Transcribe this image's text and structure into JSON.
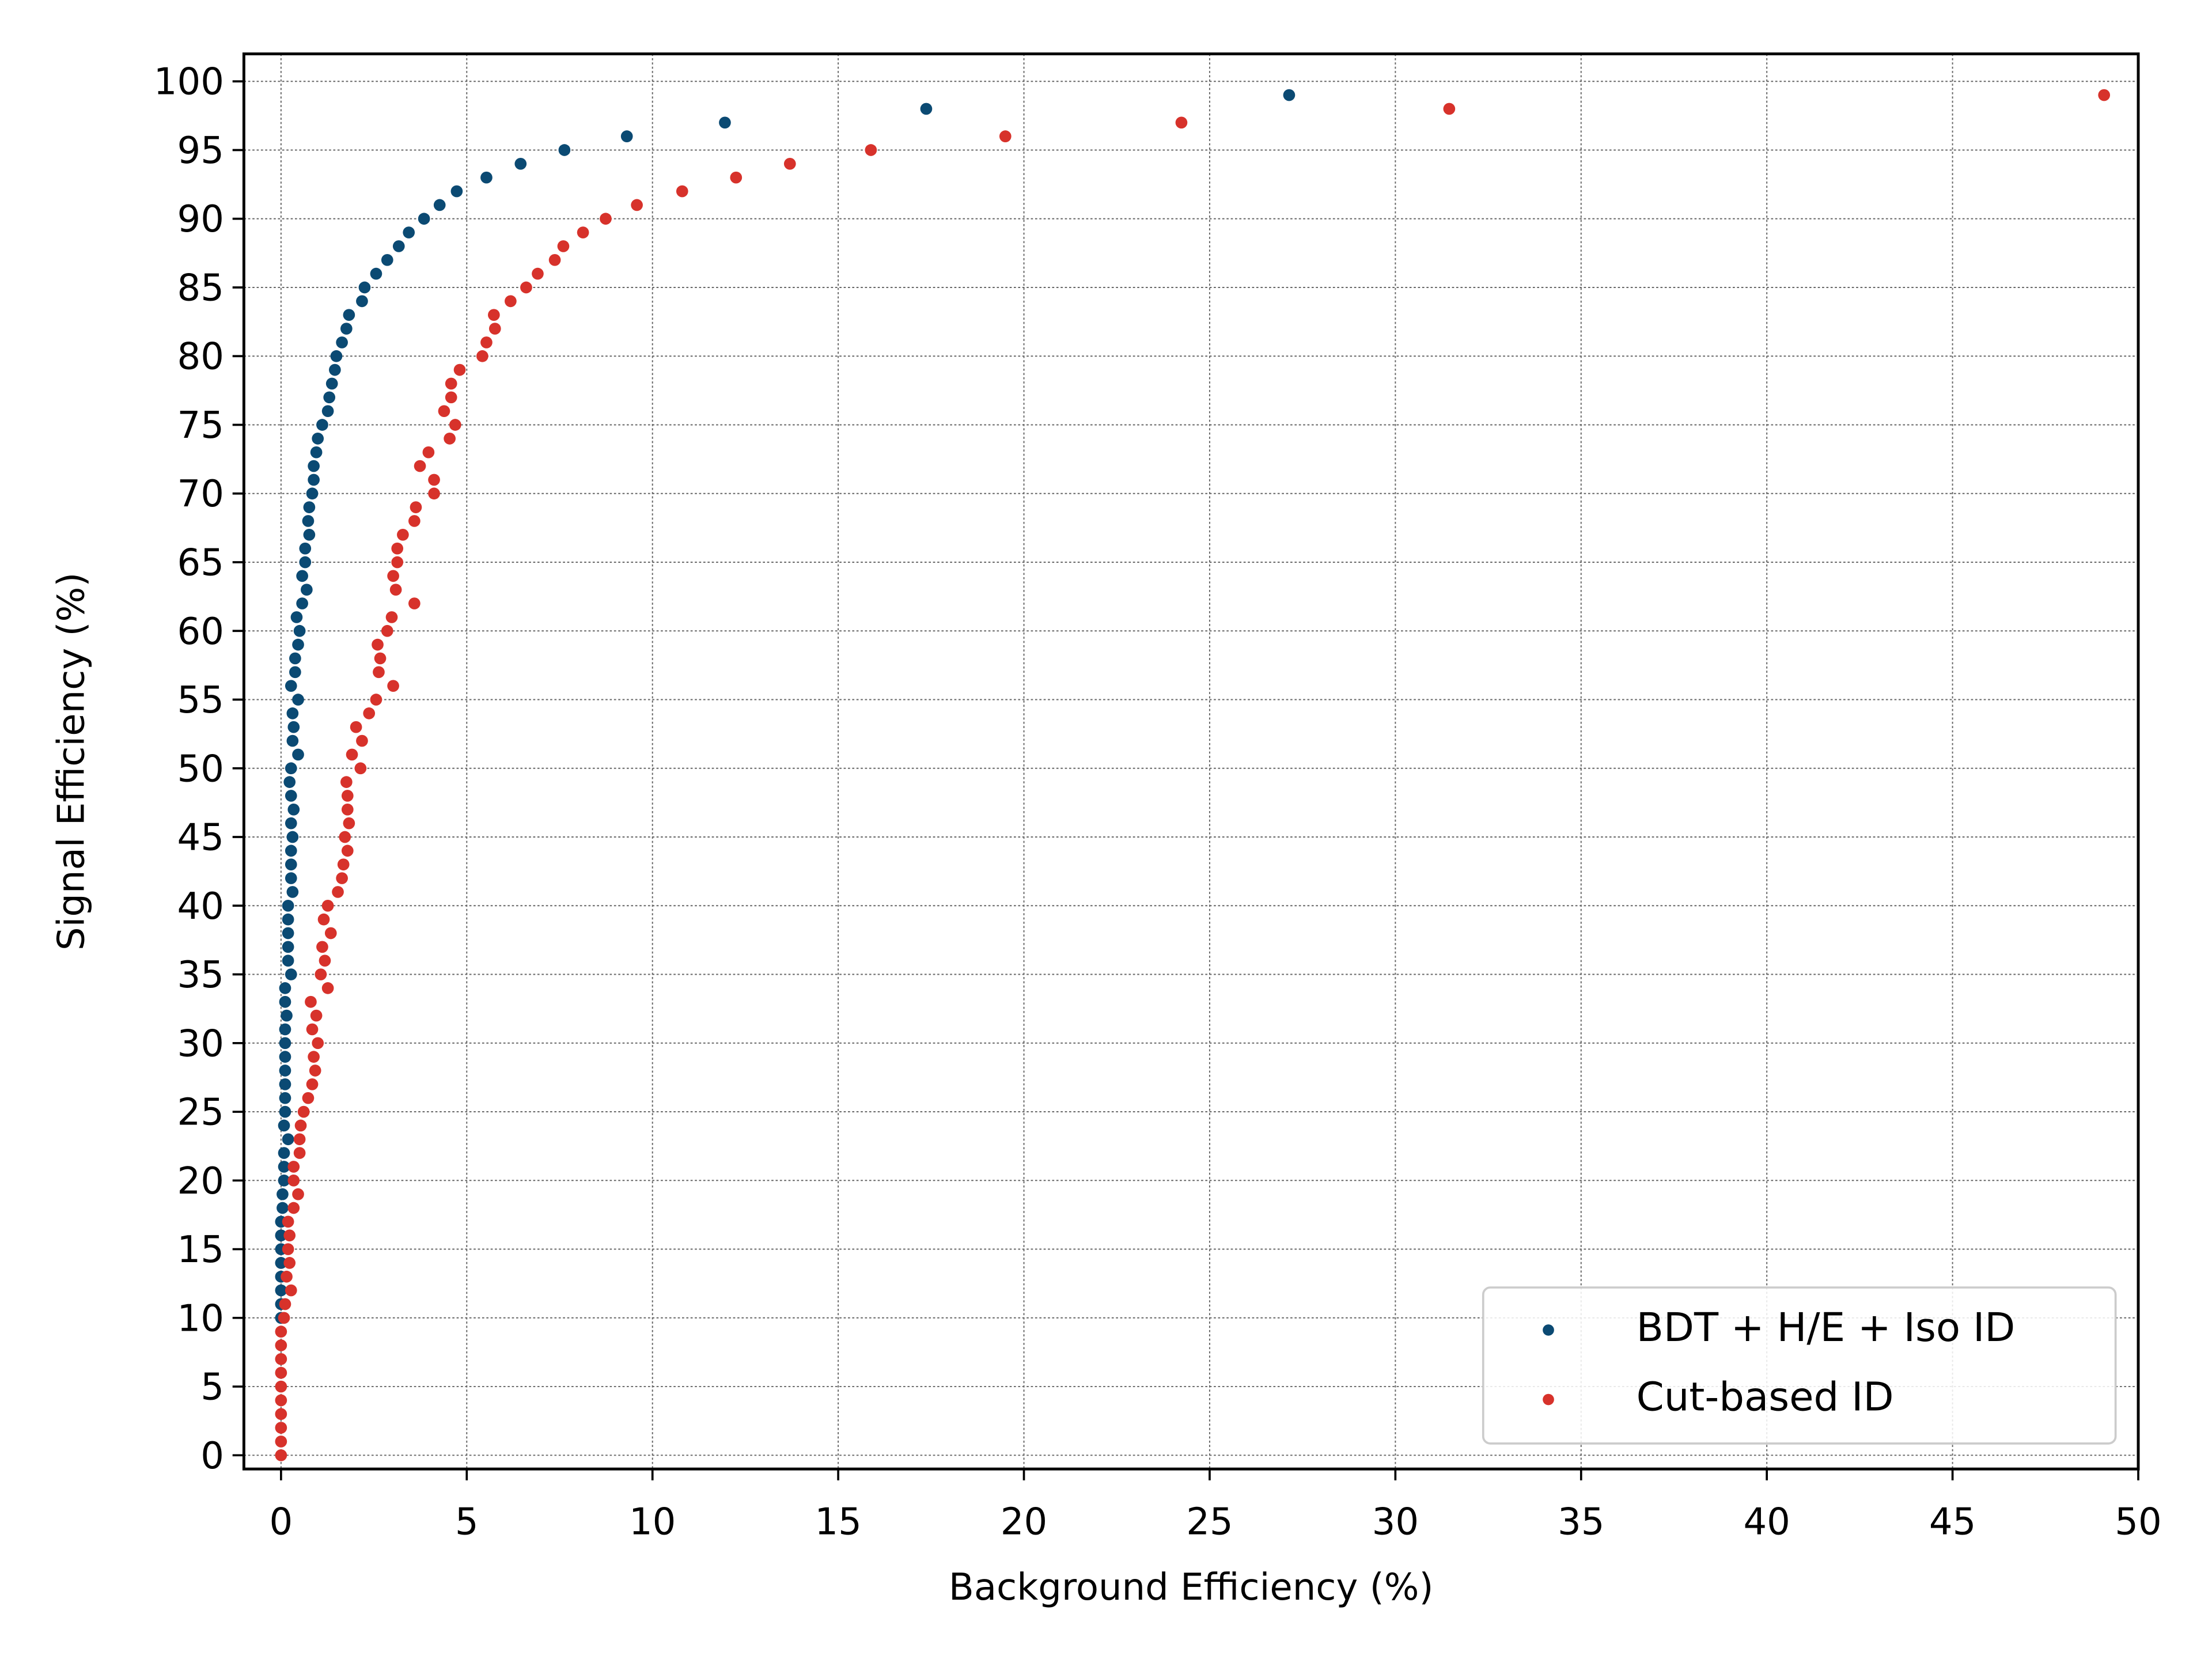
{
  "chart_data": {
    "type": "scatter",
    "xlabel": "Background Efficiency (%)",
    "ylabel": "Signal Efficiency (%)",
    "xlim": [
      -1,
      50
    ],
    "ylim": [
      -1,
      102
    ],
    "xticks": [
      0,
      5,
      10,
      15,
      20,
      25,
      30,
      35,
      40,
      45,
      50
    ],
    "yticks": [
      0,
      5,
      10,
      15,
      20,
      25,
      30,
      35,
      40,
      45,
      50,
      55,
      60,
      65,
      70,
      75,
      80,
      85,
      90,
      95,
      100
    ],
    "grid": true,
    "legend": "lower right",
    "series": [
      {
        "name": "BDT + H/E + Iso ID",
        "color": "#0b4a73",
        "x": [
          0,
          0,
          0,
          0,
          0,
          0,
          0,
          0,
          0.04,
          0.04,
          0.08,
          0.08,
          0.08,
          0.19,
          0.08,
          0.11,
          0.11,
          0.11,
          0.11,
          0.11,
          0.11,
          0.11,
          0.15,
          0.11,
          0.11,
          0.27,
          0.19,
          0.19,
          0.19,
          0.19,
          0.19,
          0.31,
          0.27,
          0.27,
          0.27,
          0.31,
          0.27,
          0.34,
          0.27,
          0.23,
          0.27,
          0.46,
          0.31,
          0.34,
          0.31,
          0.46,
          0.27,
          0.38,
          0.38,
          0.46,
          0.5,
          0.42,
          0.57,
          0.69,
          0.57,
          0.65,
          0.65,
          0.76,
          0.73,
          0.76,
          0.84,
          0.88,
          0.88,
          0.95,
          0.99,
          1.11,
          1.26,
          1.3,
          1.37,
          1.45,
          1.49,
          1.64,
          1.76,
          1.83,
          2.18,
          2.25,
          2.56,
          2.86,
          3.17,
          3.44,
          3.85,
          4.27,
          4.73,
          5.53,
          6.45,
          7.63,
          9.31,
          11.95,
          17.37,
          27.14
        ],
        "values": [
          10,
          11,
          12,
          13,
          14,
          15,
          16,
          17,
          18,
          19,
          20,
          21,
          22,
          23,
          24,
          25,
          26,
          27,
          28,
          29,
          30,
          31,
          32,
          33,
          34,
          35,
          36,
          37,
          38,
          39,
          40,
          41,
          42,
          43,
          44,
          45,
          46,
          47,
          48,
          49,
          50,
          51,
          52,
          53,
          54,
          55,
          56,
          57,
          58,
          59,
          60,
          61,
          62,
          63,
          64,
          65,
          66,
          67,
          68,
          69,
          70,
          71,
          72,
          73,
          74,
          75,
          76,
          77,
          78,
          79,
          80,
          81,
          82,
          83,
          84,
          85,
          86,
          87,
          88,
          89,
          90,
          91,
          92,
          93,
          94,
          95,
          96,
          97,
          98,
          99
        ]
      },
      {
        "name": "Cut-based ID",
        "color": "#d7322b",
        "x": [
          0,
          0,
          0,
          0,
          0,
          0,
          0,
          0,
          0,
          0,
          0.08,
          0.11,
          0.27,
          0.15,
          0.23,
          0.19,
          0.23,
          0.19,
          0.34,
          0.46,
          0.34,
          0.34,
          0.5,
          0.5,
          0.53,
          0.61,
          0.73,
          0.84,
          0.92,
          0.88,
          0.99,
          0.84,
          0.95,
          0.8,
          1.26,
          1.07,
          1.18,
          1.11,
          1.34,
          1.15,
          1.26,
          1.53,
          1.64,
          1.68,
          1.79,
          1.72,
          1.83,
          1.79,
          1.79,
          1.76,
          2.14,
          1.91,
          2.18,
          2.02,
          2.37,
          2.56,
          3.02,
          2.63,
          2.67,
          2.6,
          2.86,
          2.98,
          3.59,
          3.09,
          3.02,
          3.13,
          3.13,
          3.28,
          3.59,
          3.63,
          4.12,
          4.12,
          3.74,
          3.97,
          4.54,
          4.69,
          4.39,
          4.58,
          4.58,
          4.81,
          5.42,
          5.53,
          5.76,
          5.73,
          6.18,
          6.6,
          6.91,
          7.37,
          7.6,
          8.13,
          8.74,
          9.58,
          10.8,
          12.25,
          13.7,
          15.88,
          19.5,
          24.24,
          31.45,
          49.08
        ],
        "values": [
          0,
          1,
          2,
          3,
          4,
          5,
          6,
          7,
          8,
          9,
          10,
          11,
          12,
          13,
          14,
          15,
          16,
          17,
          18,
          19,
          20,
          21,
          22,
          23,
          24,
          25,
          26,
          27,
          28,
          29,
          30,
          31,
          32,
          33,
          34,
          35,
          36,
          37,
          38,
          39,
          40,
          41,
          42,
          43,
          44,
          45,
          46,
          47,
          48,
          49,
          50,
          51,
          52,
          53,
          54,
          55,
          56,
          57,
          58,
          59,
          60,
          61,
          62,
          63,
          64,
          65,
          66,
          67,
          68,
          69,
          70,
          71,
          72,
          73,
          74,
          75,
          76,
          77,
          78,
          79,
          80,
          81,
          82,
          83,
          84,
          85,
          86,
          87,
          88,
          89,
          90,
          91,
          92,
          93,
          94,
          95,
          96,
          97,
          98,
          99
        ]
      }
    ]
  }
}
